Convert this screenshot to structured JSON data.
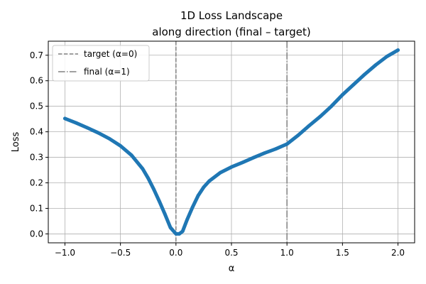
{
  "chart_data": {
    "type": "line",
    "title_lines": [
      "1D Loss Landscape",
      "along direction (final – target)"
    ],
    "xlabel": "α",
    "ylabel": "Loss",
    "xlim": [
      -1.15,
      2.15
    ],
    "ylim": [
      -0.035,
      0.755
    ],
    "xticks": [
      -1.0,
      -0.5,
      0.0,
      0.5,
      1.0,
      1.5,
      2.0
    ],
    "xtick_labels": [
      "−1.0",
      "−0.5",
      "0.0",
      "0.5",
      "1.0",
      "1.5",
      "2.0"
    ],
    "yticks": [
      0.0,
      0.1,
      0.2,
      0.3,
      0.4,
      0.5,
      0.6,
      0.7
    ],
    "ytick_labels": [
      "0.0",
      "0.1",
      "0.2",
      "0.3",
      "0.4",
      "0.5",
      "0.6",
      "0.7"
    ],
    "grid": true,
    "legend_position": "top-left",
    "line_color": "#1f77b4",
    "ref_line_color": "#808080",
    "series": [
      {
        "x": [
          -1.0,
          -0.9,
          -0.8,
          -0.7,
          -0.6,
          -0.5,
          -0.4,
          -0.3,
          -0.25,
          -0.2,
          -0.15,
          -0.1,
          -0.05,
          0.0,
          0.03,
          0.06,
          0.1,
          0.15,
          0.2,
          0.25,
          0.3,
          0.4,
          0.5,
          0.6,
          0.7,
          0.8,
          0.9,
          1.0,
          1.1,
          1.2,
          1.3,
          1.4,
          1.5,
          1.6,
          1.7,
          1.8,
          1.9,
          2.0
        ],
        "y": [
          0.452,
          0.435,
          0.416,
          0.396,
          0.373,
          0.345,
          0.308,
          0.255,
          0.218,
          0.175,
          0.128,
          0.078,
          0.025,
          0.0,
          0.0,
          0.01,
          0.055,
          0.105,
          0.15,
          0.183,
          0.207,
          0.24,
          0.262,
          0.28,
          0.299,
          0.317,
          0.333,
          0.352,
          0.386,
          0.424,
          0.46,
          0.5,
          0.545,
          0.585,
          0.625,
          0.662,
          0.695,
          0.72
        ]
      }
    ],
    "reference_lines": [
      {
        "x": 0.0,
        "label": "target (α=0)",
        "style": "dashed"
      },
      {
        "x": 1.0,
        "label": "final  (α=1)",
        "style": "dashdot"
      }
    ]
  }
}
